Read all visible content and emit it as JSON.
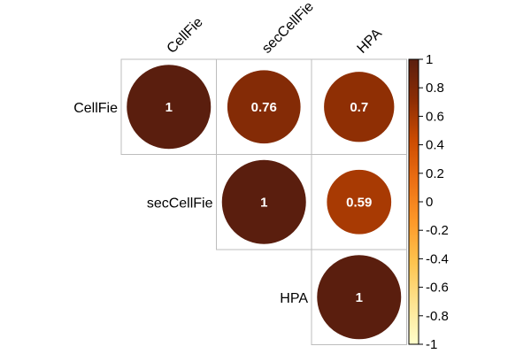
{
  "chart_data": {
    "type": "heatmap",
    "variables": [
      "CellFie",
      "secCellFie",
      "HPA"
    ],
    "matrix": [
      [
        1,
        0.76,
        0.7
      ],
      [
        0.76,
        1,
        0.59
      ],
      [
        0.7,
        0.59,
        1
      ]
    ],
    "display": "upper",
    "value_labels": [
      [
        {
          "row": 0,
          "col": 0,
          "text": "1"
        },
        {
          "row": 0,
          "col": 1,
          "text": "0.76"
        },
        {
          "row": 0,
          "col": 2,
          "text": "0.7"
        }
      ],
      [
        {
          "row": 1,
          "col": 1,
          "text": "1"
        },
        {
          "row": 1,
          "col": 2,
          "text": "0.59"
        }
      ],
      [
        {
          "row": 2,
          "col": 2,
          "text": "1"
        }
      ]
    ],
    "colorbar": {
      "range": [
        -1,
        1
      ],
      "ticks": [
        "1",
        "0.8",
        "0.6",
        "0.4",
        "0.2",
        "0",
        "-0.2",
        "-0.4",
        "-0.6",
        "-0.8",
        "-1"
      ],
      "colors": [
        "#ffffcc",
        "#fee391",
        "#fec44f",
        "#fe9929",
        "#ec7014",
        "#cc4c02",
        "#8c2d04",
        "#5a1e0e"
      ]
    }
  }
}
